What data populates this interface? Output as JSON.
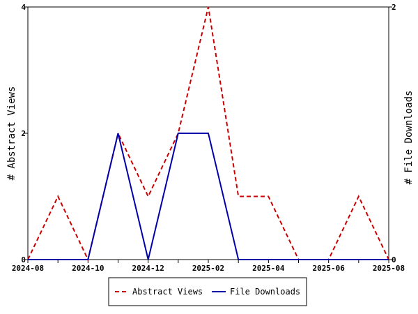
{
  "chart_data": {
    "type": "line",
    "x": [
      "2024-08",
      "2024-09",
      "2024-10",
      "2024-11",
      "2024-12",
      "2025-01",
      "2025-02",
      "2025-03",
      "2025-04",
      "2025-05",
      "2025-06",
      "2025-07",
      "2025-08"
    ],
    "x_tick_labels": [
      "2024-08",
      "2024-10",
      "2024-12",
      "2025-02",
      "2025-04",
      "2025-06",
      "2025-08"
    ],
    "series": [
      {
        "name": "Abstract Views",
        "axis": "left",
        "color": "#cc0000",
        "dash": "dashed",
        "values": [
          0,
          1,
          0,
          2,
          1,
          2,
          4,
          1,
          1,
          0,
          0,
          1,
          0
        ]
      },
      {
        "name": "File Downloads",
        "axis": "right",
        "color": "#0000aa",
        "dash": "solid",
        "values": [
          0,
          0,
          0,
          1,
          0,
          1,
          1,
          0,
          0,
          0,
          0,
          0,
          0
        ]
      }
    ],
    "ylabel": "# Abstract Views",
    "ylabel_right": "# File Downloads",
    "ylim": [
      0,
      4
    ],
    "ylim_right": [
      0,
      2
    ],
    "yticks": [
      0,
      2,
      4
    ],
    "yticks_right": [
      0,
      2
    ],
    "grid": false,
    "legend_position": "bottom-center"
  }
}
